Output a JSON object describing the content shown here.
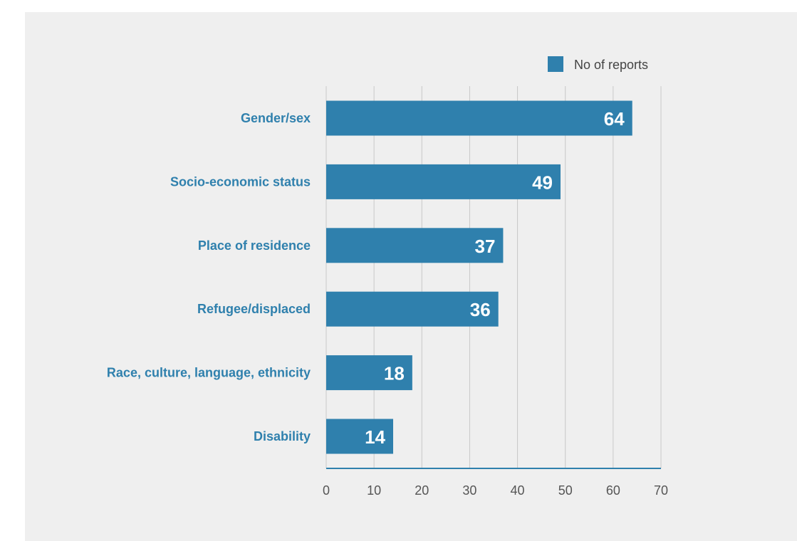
{
  "chart_data": {
    "type": "bar",
    "orientation": "horizontal",
    "categories": [
      "Gender/sex",
      "Socio-economic status",
      "Place of residence",
      "Refugee/displaced",
      "Race, culture, language, ethnicity",
      "Disability"
    ],
    "series": [
      {
        "name": "No of reports",
        "values": [
          64,
          49,
          37,
          36,
          18,
          14
        ]
      }
    ],
    "title": "",
    "xlabel": "",
    "ylabel": "",
    "xlim": [
      0,
      70
    ],
    "ticks": [
      "0",
      "10",
      "20",
      "30",
      "40",
      "50",
      "60",
      "70"
    ],
    "grid": "vertical",
    "legend_position": "top-right",
    "data_labels": "inside-end",
    "colors": {
      "bar": "#2f80ad",
      "category_label": "#2f80ad",
      "value_label": "#ffffff",
      "background": "#efefef",
      "grid": "#c8c8c8"
    }
  }
}
